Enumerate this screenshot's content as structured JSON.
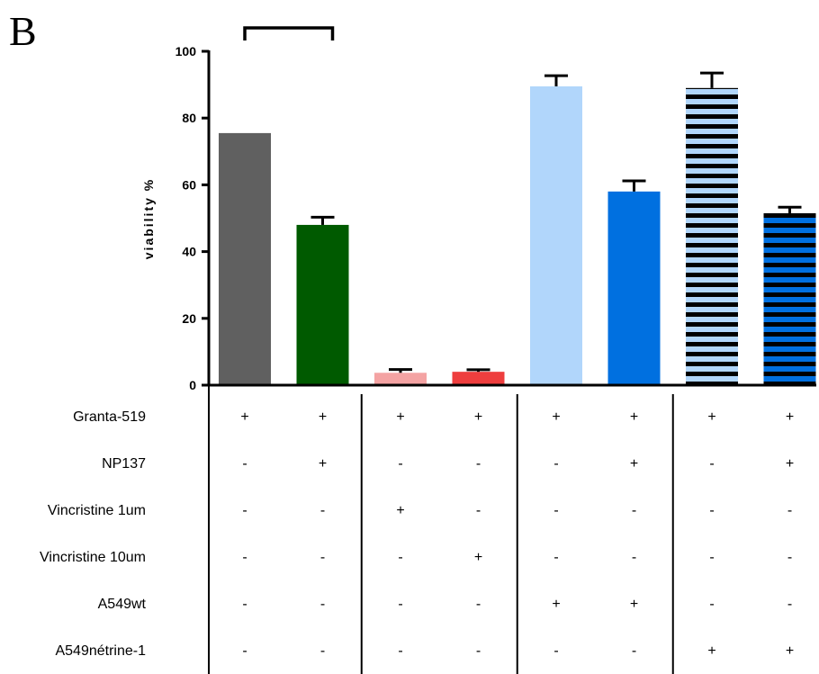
{
  "panel_letter": "B",
  "chart_data": {
    "type": "bar",
    "title": "",
    "xlabel": "",
    "ylabel": "viability %",
    "ylim": [
      0,
      100
    ],
    "yticks": [
      "0",
      "20",
      "40",
      "60",
      "80",
      "100"
    ],
    "grid": false,
    "bars": [
      {
        "value": 75.5,
        "error": 0,
        "color": "#606060",
        "pattern": "solid"
      },
      {
        "value": 48,
        "error": 2.3,
        "color": "#005a00",
        "pattern": "solid"
      },
      {
        "value": 3.7,
        "error": 1,
        "color": "#f4a3a3",
        "pattern": "solid"
      },
      {
        "value": 4,
        "error": 0.6,
        "color": "#ee3e3e",
        "pattern": "solid"
      },
      {
        "value": 89.5,
        "error": 3.2,
        "color": "#b1d6fb",
        "pattern": "solid"
      },
      {
        "value": 58,
        "error": 3.2,
        "color": "#0070e0",
        "pattern": "solid"
      },
      {
        "value": 89,
        "error": 4.5,
        "color": "#b1d6fb",
        "pattern": "striped"
      },
      {
        "value": 51.5,
        "error": 1.8,
        "color": "#0070e0",
        "pattern": "striped"
      }
    ],
    "bracket": {
      "from_bar": 0,
      "to_bar": 1
    },
    "conditions": {
      "rows": [
        {
          "label": "Granta-519",
          "marks": [
            "+",
            "+",
            "+",
            "+",
            "+",
            "+",
            "+",
            "+"
          ]
        },
        {
          "label": "NP137",
          "marks": [
            "-",
            "+",
            "-",
            "-",
            "-",
            "+",
            "-",
            "+"
          ]
        },
        {
          "label": "Vincristine 1um",
          "marks": [
            "-",
            "-",
            "+",
            "-",
            "-",
            "-",
            "-",
            "-"
          ]
        },
        {
          "label": "Vincristine 10um",
          "marks": [
            "-",
            "-",
            "-",
            "+",
            "-",
            "-",
            "-",
            "-"
          ]
        },
        {
          "label": "A549wt",
          "marks": [
            "-",
            "-",
            "-",
            "-",
            "+",
            "+",
            "-",
            "-"
          ]
        },
        {
          "label": "A549nétrine-1",
          "marks": [
            "-",
            "-",
            "-",
            "-",
            "-",
            "-",
            "+",
            "+"
          ]
        }
      ],
      "group_dividers_after": [
        1,
        3,
        5
      ]
    }
  }
}
